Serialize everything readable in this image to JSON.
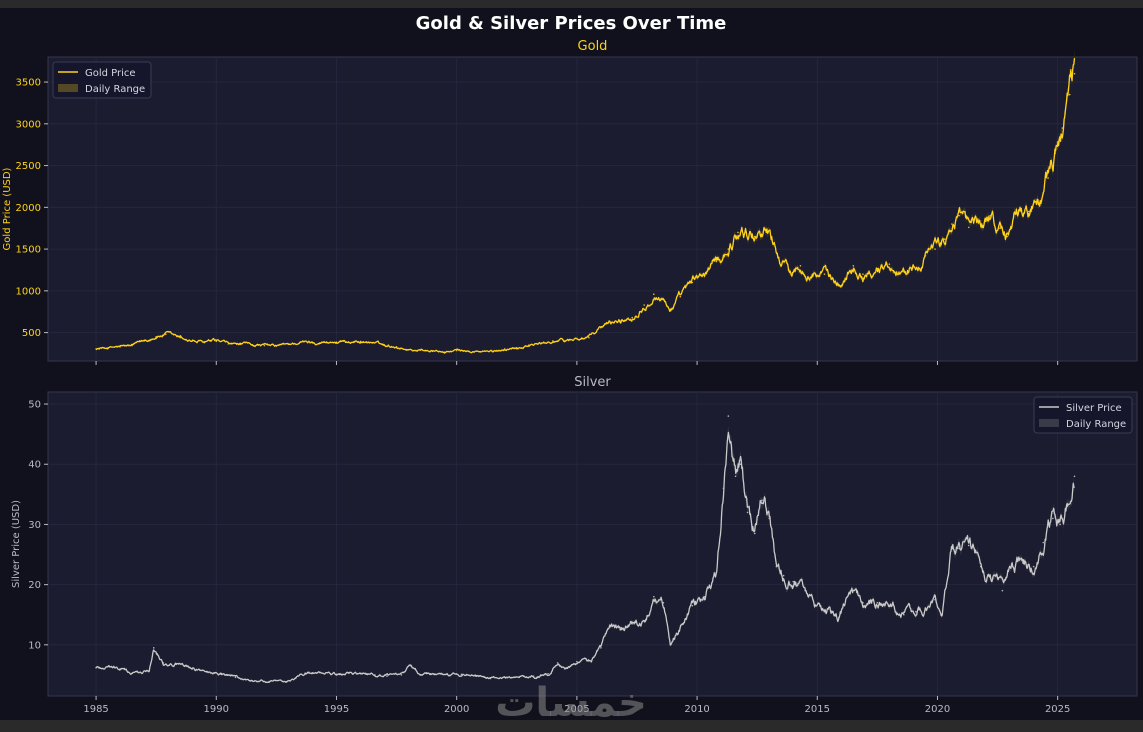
{
  "figure": {
    "title": "Gold & Silver Prices Over Time",
    "watermark": "خمسات"
  },
  "colors": {
    "background": "#10111c",
    "panel": "#1b1c2f",
    "grid": "#262840",
    "gold": "#ffd11a",
    "gold_range": "#5a4f24",
    "silver": "#c9c9c9",
    "silver_range": "#3e3f4d",
    "title": "#ffffff",
    "tick": "#b9b9c7"
  },
  "chart_data": [
    {
      "type": "line",
      "title": "Gold",
      "xlabel": "",
      "ylabel": "Gold Price (USD)",
      "xlim": [
        1983.0,
        2028.3
      ],
      "ylim": [
        160,
        3800
      ],
      "xticks": [
        1985,
        1990,
        1995,
        2000,
        2005,
        2010,
        2015,
        2020,
        2025
      ],
      "yticks": [
        500,
        1000,
        1500,
        2000,
        2500,
        3000,
        3500
      ],
      "grid": true,
      "legend": {
        "position": "top-left",
        "entries": [
          "Gold Price",
          "Daily Range"
        ]
      },
      "series": [
        {
          "name": "Gold Price",
          "x": [
            1985.0,
            1985.5,
            1986.0,
            1986.5,
            1987.0,
            1987.5,
            1987.9,
            1988.5,
            1989.0,
            1989.5,
            1990.0,
            1990.5,
            1991.0,
            1991.5,
            1992.0,
            1992.5,
            1993.0,
            1993.5,
            1994.0,
            1994.5,
            1995.0,
            1995.5,
            1996.0,
            1996.5,
            1997.0,
            1997.5,
            1998.0,
            1998.5,
            1999.0,
            1999.5,
            2000.0,
            2000.5,
            2001.0,
            2001.5,
            2002.0,
            2002.5,
            2003.0,
            2003.5,
            2004.0,
            2004.5,
            2005.0,
            2005.5,
            2006.0,
            2006.4,
            2006.8,
            2007.3,
            2007.8,
            2008.2,
            2008.6,
            2008.9,
            2009.3,
            2009.8,
            2010.3,
            2010.8,
            2011.3,
            2011.7,
            2012.0,
            2012.4,
            2012.8,
            2013.1,
            2013.4,
            2013.8,
            2014.3,
            2014.8,
            2015.3,
            2015.9,
            2016.5,
            2016.9,
            2017.5,
            2018.0,
            2018.6,
            2019.0,
            2019.5,
            2019.9,
            2020.3,
            2020.6,
            2020.9,
            2021.3,
            2021.8,
            2022.2,
            2022.6,
            2022.9,
            2023.3,
            2023.8,
            2024.2,
            2024.6,
            2024.9,
            2025.2,
            2025.5,
            2025.7
          ],
          "values": [
            305,
            320,
            330,
            345,
            400,
            450,
            480,
            440,
            400,
            380,
            395,
            365,
            360,
            355,
            345,
            340,
            360,
            385,
            385,
            385,
            385,
            390,
            395,
            380,
            350,
            330,
            295,
            290,
            280,
            265,
            285,
            275,
            270,
            270,
            305,
            320,
            350,
            365,
            400,
            400,
            430,
            440,
            560,
            620,
            640,
            680,
            830,
            960,
            900,
            780,
            930,
            1100,
            1200,
            1350,
            1500,
            1700,
            1700,
            1650,
            1750,
            1650,
            1400,
            1250,
            1300,
            1200,
            1200,
            1060,
            1300,
            1200,
            1260,
            1320,
            1230,
            1300,
            1420,
            1500,
            1620,
            1800,
            1900,
            1760,
            1800,
            1900,
            1750,
            1650,
            1950,
            1950,
            2050,
            2350,
            2650,
            2950,
            3350,
            3600
          ]
        }
      ]
    },
    {
      "type": "line",
      "title": "Silver",
      "xlabel": "",
      "ylabel": "Silver Price (USD)",
      "xlim": [
        1983.0,
        2028.3
      ],
      "ylim": [
        1.5,
        52
      ],
      "xticks": [
        1985,
        1990,
        1995,
        2000,
        2005,
        2010,
        2015,
        2020,
        2025
      ],
      "yticks": [
        10,
        20,
        30,
        40,
        50
      ],
      "grid": true,
      "legend": {
        "position": "top-right",
        "entries": [
          "Silver Price",
          "Daily Range"
        ]
      },
      "series": [
        {
          "name": "Silver Price",
          "x": [
            1985.0,
            1985.5,
            1986.0,
            1986.5,
            1987.2,
            1987.4,
            1987.8,
            1988.3,
            1989.0,
            1989.6,
            1990.2,
            1990.8,
            1991.5,
            1992.2,
            1992.9,
            1993.3,
            1993.7,
            1994.3,
            1995.0,
            1995.5,
            1996.0,
            1996.6,
            1997.1,
            1997.7,
            1998.1,
            1998.5,
            1999.0,
            1999.6,
            2000.2,
            2000.8,
            2001.4,
            2002.0,
            2002.6,
            2003.2,
            2003.8,
            2004.2,
            2004.5,
            2005.0,
            2005.6,
            2006.0,
            2006.4,
            2006.8,
            2007.3,
            2007.8,
            2008.2,
            2008.6,
            2008.9,
            2009.4,
            2009.8,
            2010.3,
            2010.8,
            2011.1,
            2011.3,
            2011.6,
            2011.8,
            2012.1,
            2012.4,
            2012.7,
            2013.0,
            2013.3,
            2013.6,
            2014.0,
            2014.5,
            2014.9,
            2015.4,
            2015.9,
            2016.4,
            2016.9,
            2017.5,
            2018.0,
            2018.6,
            2019.1,
            2019.5,
            2019.9,
            2020.2,
            2020.6,
            2020.9,
            2021.3,
            2021.8,
            2022.3,
            2022.7,
            2023.1,
            2023.6,
            2024.0,
            2024.4,
            2024.8,
            2025.1,
            2025.4,
            2025.7
          ],
          "values": [
            6.2,
            6.4,
            6.0,
            5.3,
            5.6,
            9.5,
            7.0,
            6.8,
            6.0,
            5.5,
            5.1,
            4.6,
            4.0,
            3.9,
            3.8,
            4.5,
            5.3,
            5.4,
            5.0,
            5.3,
            5.2,
            5.0,
            4.8,
            5.0,
            6.5,
            5.0,
            5.2,
            5.2,
            5.1,
            4.8,
            4.4,
            4.6,
            4.6,
            4.8,
            5.2,
            7.0,
            6.0,
            7.2,
            7.2,
            9.5,
            13.0,
            12.5,
            13.5,
            14.0,
            18.0,
            17.0,
            10.0,
            13.5,
            16.5,
            18.0,
            22.0,
            36.0,
            48.0,
            38.0,
            40.0,
            32.0,
            28.5,
            34.0,
            31.0,
            23.0,
            21.5,
            20.5,
            19.0,
            16.5,
            15.5,
            14.5,
            19.0,
            17.0,
            17.0,
            16.5,
            15.0,
            15.5,
            16.0,
            17.5,
            15.0,
            26.0,
            26.0,
            26.5,
            23.0,
            21.0,
            19.0,
            23.5,
            23.5,
            23.0,
            27.0,
            31.0,
            30.0,
            33.0,
            38.0
          ]
        }
      ]
    }
  ]
}
